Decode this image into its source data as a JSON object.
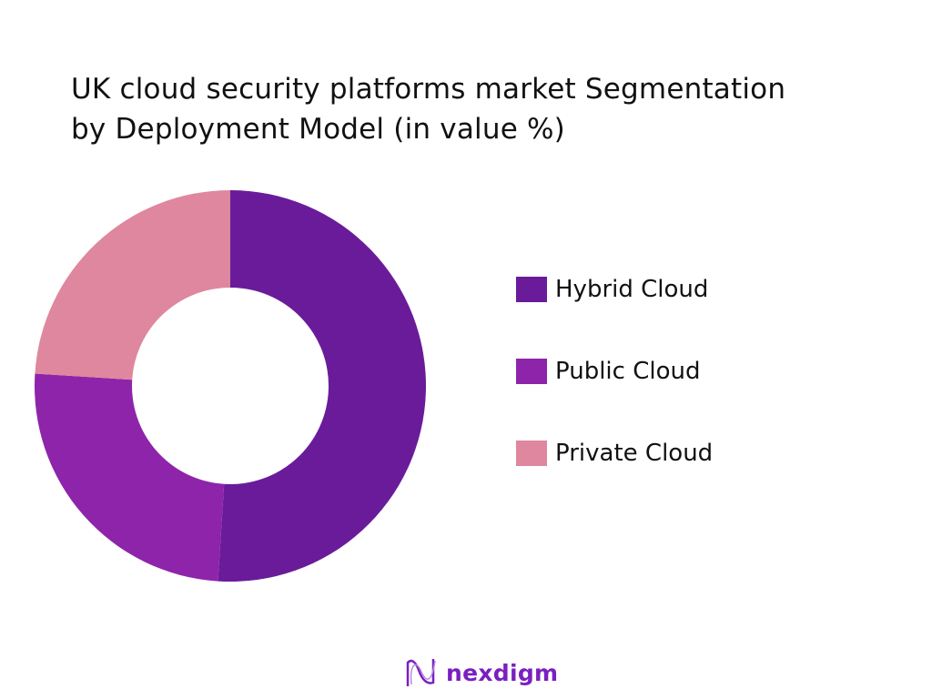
{
  "chart_data": {
    "type": "pie",
    "donut": true,
    "title": "UK cloud security platforms market Segmentation by Deployment Model (in value %)",
    "title_lines": [
      "UK cloud security platforms market Segmentation",
      "by Deployment Model (in value %)"
    ],
    "categories": [
      "Hybrid Cloud",
      "Public Cloud",
      "Private Cloud"
    ],
    "values": [
      51,
      25,
      24
    ],
    "colors": [
      "#6A1B9A",
      "#8E24AA",
      "#DE879E"
    ],
    "legend_placement": "right"
  },
  "brand": {
    "name": "nexdigm",
    "color": "#7B1FC0"
  }
}
